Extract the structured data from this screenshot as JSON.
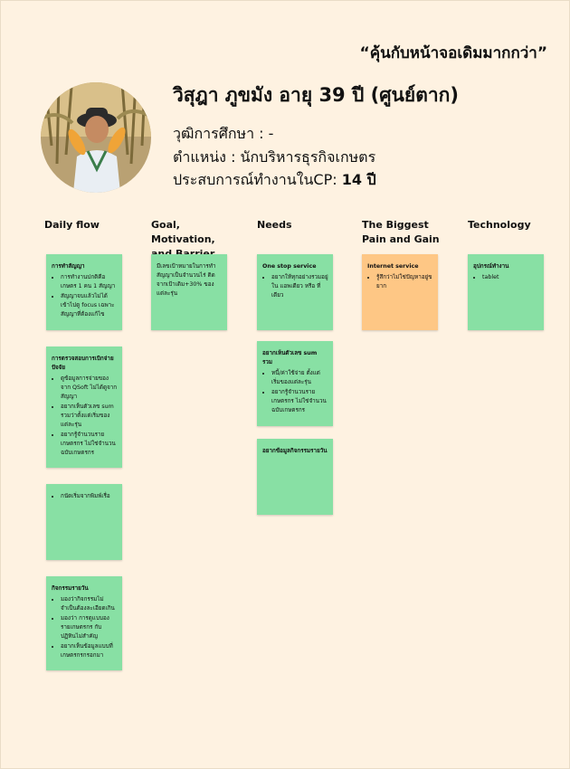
{
  "quote": "“คุ้นกับหน้าจอเดิมมากกว่า”",
  "persona": {
    "name": "วิสุฎา ภูขมัง อายุ 39 ปี (ศูนย์ตาก)",
    "education": "วุฒิการศึกษา : -",
    "position": "ตำแหน่ง : นักบริหารธุรกิจเกษตร",
    "experience_label": "ประสบการณ์ทำงานในCP: ",
    "experience_value": "14 ปี"
  },
  "columns": {
    "daily": "Daily flow",
    "goal": "Goal, Motivation, and Barrier",
    "needs": "Needs",
    "pain": "The Biggest Pain and Gain",
    "tech": "Technology"
  },
  "notes": {
    "daily1": {
      "title": "การทำสัญญา",
      "items": [
        "การทำงานปกติคือ เกษตร 1 คน 1 สัญญา",
        "สัญญาจบแล้วไม่ได้เข้าไปดู focus เฉพาะสัญญาที่ต้องแก้ไข"
      ]
    },
    "daily2": {
      "title": "การตรวจสอบการเบิกจ่ายปัจจัย",
      "items": [
        "ดูข้อมูลการจ่ายของจาก QSoft ไม่ได้ดูจากสัญญา",
        "อยากเห็นตัวเลข sum รวมว่าตั้งแต่เริ่มของแต่ละรุ่น",
        "อยากรู้จำนวนรายเกษตรกร ไม่ใช่จำนวนฉบับเกษตรกร"
      ]
    },
    "daily3": {
      "items": [
        "กนัดเริ่มจากพิมพ์เรื่อ"
      ]
    },
    "daily4": {
      "title": "กิจกรรมรายวัน",
      "items": [
        "มองว่ากิจกรรมไม่จำเป็นต้องละเอียดเกิน",
        "มองว่า การดูแบบองรายเกษตรกร กับ ปฏิทินไม่สำคัญ",
        "อยากเห็นข้อมูลแบบที่เกษตรกรกรอกมา"
      ]
    },
    "goal1": {
      "text": "มีเลขเป้าหมายในการทำสัญญาเป็นจำนวนไร่ ติดจากเป้าเดิม+30% ของแต่ละรุ่น"
    },
    "need1": {
      "title": "One stop service",
      "items": [
        "อยากให้ทุกอย่างรวมอยู่ใน แอพเดียว หรือ ที่เดียว"
      ]
    },
    "need2": {
      "title": "อยากเห็นตัวเลข sum รวม",
      "items": [
        "หนี้/ค่าใช้จ่าย ตั้งแต่เริ่มของแต่ละรุ่น",
        "อยากรู้จำนวนรายเกษตรกร ไม่ใช่จำนวนฉบับเกษตรกร"
      ]
    },
    "need3": {
      "title": "อยากข้อมูลกิจกรรมรายวัน"
    },
    "pain1": {
      "title": "Internet service",
      "items": [
        "รู้สึกว่าไม่ใช่ปัญหาอยู่ขยาก"
      ]
    },
    "tech1": {
      "title": "อุปกรณ์ทำงาน",
      "items": [
        "tablet"
      ]
    }
  }
}
